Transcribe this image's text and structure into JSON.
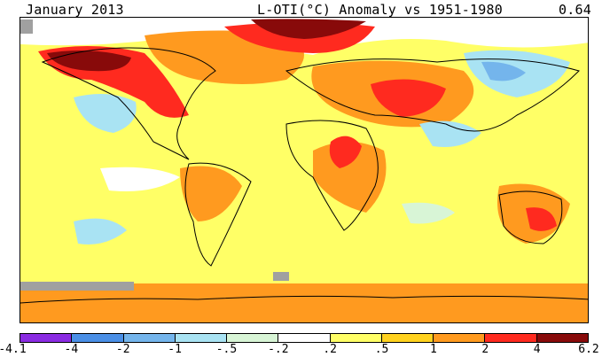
{
  "header": {
    "date": "January 2013",
    "map_title": "L-OTI(°C) Anomaly vs 1951-1980",
    "global_mean": "0.64"
  },
  "colorbar": {
    "bins": [
      {
        "color": "#8a2be2"
      },
      {
        "color": "#4a8fe6"
      },
      {
        "color": "#74b5ec"
      },
      {
        "color": "#a9e3f3"
      },
      {
        "color": "#d8f5d6"
      },
      {
        "color": "#ffffff"
      },
      {
        "color": "#ffff66"
      },
      {
        "color": "#ffd21f"
      },
      {
        "color": "#ff9a1f"
      },
      {
        "color": "#ff2a1f"
      },
      {
        "color": "#880a0a"
      }
    ],
    "labels": [
      "-4.1",
      "-4",
      "-2",
      "-1",
      "-.5",
      "-.2",
      ".2",
      ".5",
      "1",
      "2",
      "4",
      "6.2"
    ]
  },
  "legend_colors": {
    "no_data": "#a0a0a0",
    "land_outline": "#000000"
  }
}
